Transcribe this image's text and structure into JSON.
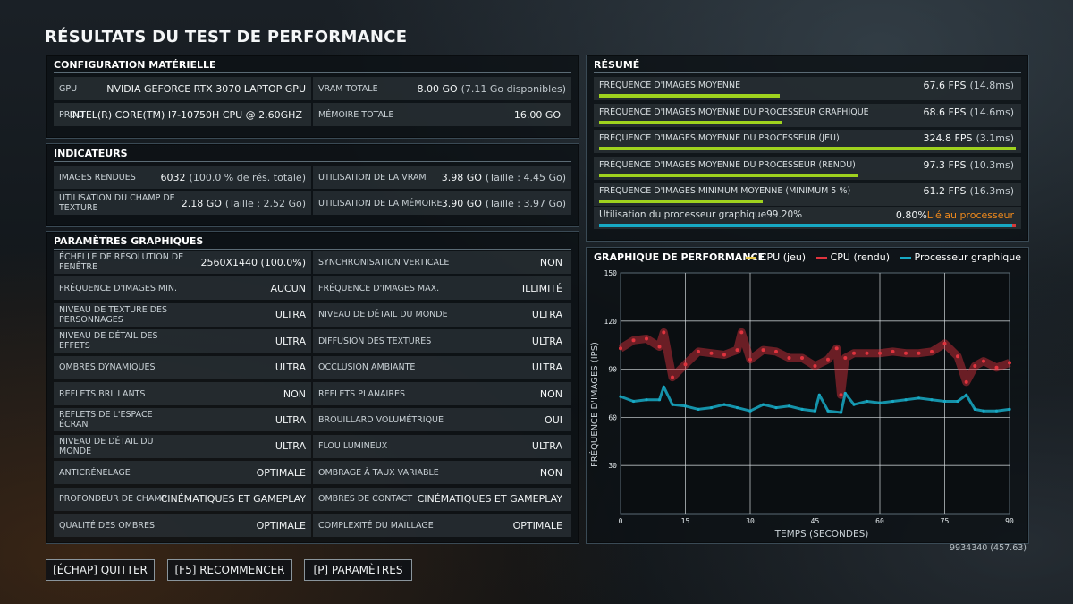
{
  "title": "RÉSULTATS DU TEST DE PERFORMANCE",
  "hardware": {
    "heading": "CONFIGURATION MATÉRIELLE",
    "gpu_label": "GPU",
    "gpu_value": "NVIDIA GEFORCE RTX 3070 LAPTOP GPU",
    "vram_label": "VRAM TOTALE",
    "vram_value": "8.00 GO",
    "vram_sub": "(7.11 Go disponibles)",
    "proc_label": "PROCESSEUR",
    "proc_value": "INTEL(R) CORE(TM) I7-10750H CPU @ 2.60GHZ",
    "mem_label": "MÉMOIRE TOTALE",
    "mem_value": "16.00 GO"
  },
  "indicators": {
    "heading": "INDICATEURS",
    "items": [
      {
        "label": "IMAGES RENDUES",
        "value": "6032",
        "sub": "(100.0 % de rés. totale)"
      },
      {
        "label": "UTILISATION DE LA VRAM",
        "value": "3.98 GO",
        "sub": "(Taille : 4.45 Go)"
      },
      {
        "label": "UTILISATION DU CHAMP DE TEXTURE",
        "value": "2.18 GO",
        "sub": "(Taille : 2.52 Go)"
      },
      {
        "label": "UTILISATION DE LA MÉMOIRE",
        "value": "3.90 GO",
        "sub": "(Taille : 3.97 Go)"
      }
    ]
  },
  "settings": {
    "heading": "PARAMÈTRES GRAPHIQUES",
    "items": [
      {
        "label": "ÉCHELLE DE RÉSOLUTION DE FENÊTRE",
        "value": "2560X1440 (100.0%)"
      },
      {
        "label": "SYNCHRONISATION VERTICALE",
        "value": "NON"
      },
      {
        "label": "FRÉQUENCE D'IMAGES MIN.",
        "value": "AUCUN"
      },
      {
        "label": "FRÉQUENCE D'IMAGES MAX.",
        "value": "ILLIMITÉ"
      },
      {
        "label": "NIVEAU DE TEXTURE DES PERSONNAGES",
        "value": "ULTRA"
      },
      {
        "label": "NIVEAU DE DÉTAIL DU MONDE",
        "value": "ULTRA"
      },
      {
        "label": "NIVEAU DE DÉTAIL DES EFFETS",
        "value": "ULTRA"
      },
      {
        "label": "DIFFUSION DES TEXTURES",
        "value": "ULTRA"
      },
      {
        "label": "OMBRES DYNAMIQUES",
        "value": "ULTRA"
      },
      {
        "label": "OCCLUSION AMBIANTE",
        "value": "ULTRA"
      },
      {
        "label": "REFLETS BRILLANTS",
        "value": "NON"
      },
      {
        "label": "REFLETS PLANAIRES",
        "value": "NON"
      },
      {
        "label": "REFLETS DE L'ESPACE ÉCRAN",
        "value": "ULTRA"
      },
      {
        "label": "BROUILLARD VOLUMÉTRIQUE",
        "value": "OUI"
      },
      {
        "label": "NIVEAU DE DÉTAIL DU MONDE",
        "value": "ULTRA"
      },
      {
        "label": "FLOU LUMINEUX",
        "value": "ULTRA"
      },
      {
        "label": "ANTICRÉNELAGE",
        "value": "OPTIMALE"
      },
      {
        "label": "OMBRAGE À TAUX VARIABLE",
        "value": "NON"
      },
      {
        "label": "PROFONDEUR DE CHAMP",
        "value": "CINÉMATIQUES ET GAMEPLAY"
      },
      {
        "label": "OMBRES DE CONTACT",
        "value": "CINÉMATIQUES ET GAMEPLAY"
      },
      {
        "label": "QUALITÉ DES OMBRES",
        "value": "OPTIMALE"
      },
      {
        "label": "COMPLEXITÉ DU MAILLAGE",
        "value": "OPTIMALE"
      }
    ]
  },
  "summary": {
    "heading": "RÉSUMÉ",
    "items": [
      {
        "label": "FRÉQUENCE D'IMAGES MOYENNE",
        "value": "67.6 FPS",
        "sub": "(14.8ms)",
        "fps": 67.6
      },
      {
        "label": "FRÉQUENCE D'IMAGES MOYENNE DU PROCESSEUR GRAPHIQUE",
        "value": "68.6 FPS",
        "sub": "(14.6ms)",
        "fps": 68.6
      },
      {
        "label": "FRÉQUENCE D'IMAGES MOYENNE DU PROCESSEUR (JEU)",
        "value": "324.8 FPS",
        "sub": "(3.1ms)",
        "fps": 324.8
      },
      {
        "label": "FRÉQUENCE D'IMAGES MOYENNE DU PROCESSEUR (RENDU)",
        "value": "97.3 FPS",
        "sub": "(10.3ms)",
        "fps": 97.3
      },
      {
        "label": "FRÉQUENCE D'IMAGES MINIMUM MOYENNE (MINIMUM 5 %)",
        "value": "61.2 FPS",
        "sub": "(16.3ms)",
        "fps": 61.2
      }
    ],
    "bar_scale_fps": 100,
    "gpu_util_label": "Utilisation du processeur graphique",
    "gpu_util_value": "99.20%",
    "gpu_util": 99.2,
    "cpu_bound_value": "0.80%",
    "cpu_bound_label": "Lié au processeur"
  },
  "chart": {
    "heading": "GRAPHIQUE DE PERFORMANCE",
    "legend": [
      {
        "name": "CPU (jeu)",
        "color": "#e8c94a"
      },
      {
        "name": "CPU (rendu)",
        "color": "#e0343e"
      },
      {
        "name": "Processeur graphique",
        "color": "#17a9c4"
      }
    ]
  },
  "chart_data": {
    "type": "scatter",
    "title": "GRAPHIQUE DE PERFORMANCE",
    "xlabel": "TEMPS (SECONDES)",
    "ylabel": "FRÉQUENCE D'IMAGES (IPS)",
    "xlim": [
      0,
      90
    ],
    "ylim": [
      0,
      150
    ],
    "x_ticks": [
      0,
      15,
      30,
      45,
      60,
      75,
      90
    ],
    "y_ticks": [
      30,
      60,
      90,
      120,
      150
    ],
    "grid": true,
    "legend_position": "top",
    "series": [
      {
        "name": "CPU (rendu)",
        "color": "#e0343e",
        "x": [
          0,
          3,
          6,
          9,
          10,
          12,
          15,
          18,
          21,
          24,
          27,
          28,
          30,
          33,
          36,
          39,
          42,
          45,
          48,
          50,
          51,
          52,
          54,
          57,
          60,
          63,
          66,
          69,
          72,
          75,
          78,
          80,
          82,
          84,
          87,
          90
        ],
        "y": [
          103,
          108,
          109,
          104,
          113,
          85,
          93,
          101,
          100,
          99,
          102,
          113,
          96,
          102,
          101,
          97,
          97,
          92,
          96,
          103,
          74,
          97,
          100,
          100,
          100,
          101,
          100,
          100,
          101,
          106,
          98,
          82,
          92,
          95,
          91,
          94
        ]
      },
      {
        "name": "Processeur graphique",
        "color": "#17a9c4",
        "x": [
          0,
          3,
          6,
          9,
          10,
          12,
          15,
          18,
          21,
          24,
          27,
          30,
          33,
          36,
          39,
          42,
          45,
          46,
          48,
          51,
          52,
          54,
          57,
          60,
          63,
          66,
          69,
          72,
          75,
          78,
          80,
          82,
          84,
          87,
          90
        ],
        "y": [
          73,
          70,
          71,
          71,
          79,
          68,
          67,
          65,
          66,
          68,
          66,
          64,
          68,
          66,
          67,
          65,
          64,
          74,
          64,
          63,
          75,
          68,
          70,
          69,
          70,
          71,
          72,
          71,
          70,
          70,
          74,
          65,
          64,
          64,
          65
        ]
      },
      {
        "name": "CPU (jeu)",
        "color": "#e8c94a",
        "x": [],
        "y": []
      }
    ]
  },
  "build": "9934340 (457.63)",
  "buttons": {
    "quit": "[ÉCHAP] QUITTER",
    "restart": "[F5] RECOMMENCER",
    "settings": "[P] PARAMÈTRES"
  }
}
